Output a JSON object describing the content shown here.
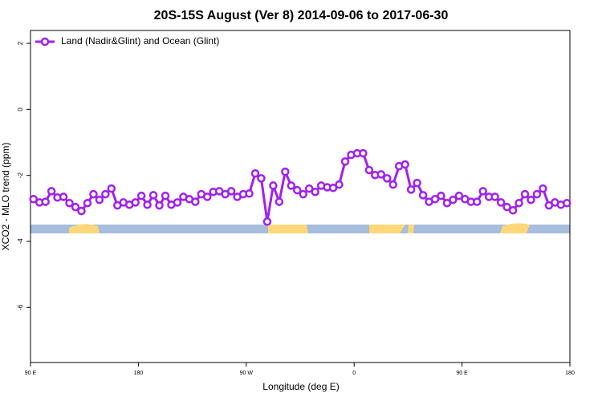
{
  "chart_data": {
    "type": "line",
    "title": "20S-15S August (Ver 8)   2014-09-06 to 2017-06-30",
    "x_label": "Longitude (deg E)",
    "y_label": "XCO2 - MLO trend (ppm)",
    "xlim": [
      90,
      540
    ],
    "ylim": [
      -7.67,
      2.39
    ],
    "xticks": [
      {
        "value": 90,
        "label": "90 E"
      },
      180,
      {
        "value": 270,
        "label": "90 W"
      },
      {
        "value": 360,
        "label": "0"
      },
      {
        "value": 450,
        "label": "90 E"
      },
      {
        "value": 540,
        "label": "180"
      }
    ],
    "yticks": [
      2,
      0,
      -2,
      -4,
      -6
    ],
    "legend": "top-left",
    "x": [
      92.5,
      97.5,
      102.5,
      107.5,
      112.5,
      117.5,
      122.5,
      127.5,
      132.5,
      137.5,
      142.5,
      147.5,
      152.5,
      157.5,
      162.5,
      167.5,
      172.5,
      177.5,
      182.5,
      187.5,
      192.5,
      197.5,
      202.5,
      207.5,
      212.5,
      217.5,
      222.5,
      227.5,
      232.5,
      237.5,
      242.5,
      247.5,
      252.5,
      257.5,
      262.5,
      267.5,
      272.5,
      277.5,
      282.5,
      287.5,
      292.5,
      297.5,
      302.5,
      307.5,
      312.5,
      317.5,
      322.5,
      327.5,
      332.5,
      337.5,
      342.5,
      347.5,
      352.5,
      357.5,
      362.5,
      367.5,
      372.5,
      377.5,
      382.5,
      387.5,
      392.5,
      397.5,
      402.5,
      407.5,
      412.5,
      417.5,
      422.5,
      427.5,
      432.5,
      437.5,
      442.5,
      447.5,
      452.5,
      457.5,
      462.5,
      467.5,
      472.5,
      477.5,
      482.5,
      487.5,
      492.5,
      497.5,
      502.5,
      507.5,
      512.5,
      517.5,
      522.5,
      527.5,
      532.5,
      537.5
    ],
    "series": [
      {
        "name": "Land (Nadir&Glint) and Ocean (Glint)",
        "color": "#a020f0",
        "values": [
          -2.72,
          -2.82,
          -2.8,
          -2.48,
          -2.67,
          -2.65,
          -2.84,
          -2.96,
          -3.08,
          -2.84,
          -2.57,
          -2.74,
          -2.57,
          -2.4,
          -2.91,
          -2.82,
          -2.89,
          -2.82,
          -2.62,
          -2.89,
          -2.6,
          -2.91,
          -2.62,
          -2.89,
          -2.82,
          -2.65,
          -2.72,
          -2.8,
          -2.57,
          -2.65,
          -2.5,
          -2.48,
          -2.57,
          -2.48,
          -2.65,
          -2.57,
          -2.55,
          -1.94,
          -2.09,
          -3.4,
          -2.31,
          -2.8,
          -1.89,
          -2.31,
          -2.45,
          -2.57,
          -2.4,
          -2.5,
          -2.31,
          -2.36,
          -2.38,
          -2.28,
          -1.58,
          -1.38,
          -1.33,
          -1.33,
          -1.84,
          -1.99,
          -1.97,
          -2.09,
          -2.28,
          -1.72,
          -1.67,
          -2.43,
          -2.23,
          -2.6,
          -2.8,
          -2.72,
          -2.62,
          -2.84,
          -2.74,
          -2.62,
          -2.72,
          -2.8,
          -2.8,
          -2.48,
          -2.65,
          -2.65,
          -2.82,
          -2.96,
          -3.06,
          -2.84,
          -2.57,
          -2.74,
          -2.57,
          -2.4,
          -2.91,
          -2.82,
          -2.89,
          -2.84
        ]
      }
    ]
  }
}
